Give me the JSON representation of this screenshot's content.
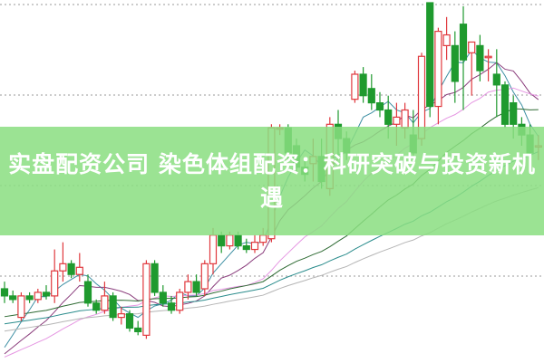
{
  "title": "实盘配资公司 染色体组配资：科研突破与投资新机遇",
  "chart_data": {
    "type": "candlestick",
    "title": "",
    "xlabel": "",
    "ylabel": "",
    "grid": "horizontal dotted",
    "ylim": [
      0,
      100
    ],
    "up_color": "#e0393e",
    "down_color": "#1f9a2e",
    "ma_colors": [
      "#3d8fa3",
      "#8a3d7c",
      "#e596e2",
      "#2f6b34",
      "#2a8c8c",
      "#b5b5b5"
    ],
    "candles": [
      [
        20,
        22,
        16,
        18
      ],
      [
        18,
        19.5,
        16,
        17
      ],
      [
        12,
        19,
        11,
        18
      ],
      [
        18,
        19,
        16,
        17
      ],
      [
        17,
        20,
        16,
        19
      ],
      [
        19,
        21,
        17,
        18
      ],
      [
        18,
        31,
        16,
        25
      ],
      [
        25,
        33,
        22,
        27
      ],
      [
        27,
        28,
        23,
        24
      ],
      [
        24,
        30,
        22,
        26
      ],
      [
        22,
        24,
        15,
        16
      ],
      [
        16,
        17,
        13,
        14
      ],
      [
        14,
        22,
        13,
        18
      ],
      [
        18,
        19,
        11,
        12
      ],
      [
        12,
        15,
        10,
        13
      ],
      [
        13,
        14,
        8,
        9
      ],
      [
        9,
        11,
        7,
        8
      ],
      [
        7,
        28,
        6,
        27
      ],
      [
        27,
        28,
        18,
        19
      ],
      [
        19,
        21,
        15,
        16
      ],
      [
        16,
        18,
        13,
        14
      ],
      [
        14,
        20,
        13,
        19
      ],
      [
        19,
        24,
        17,
        22
      ],
      [
        22,
        24,
        18,
        19
      ],
      [
        20,
        28,
        18,
        27
      ],
      [
        27,
        37,
        24,
        35
      ],
      [
        35,
        36,
        30,
        32
      ],
      [
        32,
        36,
        31,
        35
      ],
      [
        35,
        36,
        31,
        32
      ],
      [
        32,
        34,
        30,
        31
      ],
      [
        31,
        35,
        30,
        33
      ],
      [
        33,
        37,
        32,
        35
      ],
      [
        34,
        66,
        33,
        65
      ],
      [
        65,
        66,
        63,
        65
      ],
      [
        65,
        66,
        56,
        58
      ],
      [
        60,
        62,
        52,
        54
      ],
      [
        54,
        56,
        50,
        52
      ],
      [
        55,
        62,
        50,
        57
      ],
      [
        57,
        62,
        48,
        50
      ],
      [
        48,
        68,
        46,
        66
      ],
      [
        66,
        70,
        57,
        62
      ],
      [
        62,
        64,
        56,
        58
      ],
      [
        73,
        81,
        72,
        80
      ],
      [
        80,
        82,
        72,
        74
      ],
      [
        76,
        80,
        70,
        72
      ],
      [
        72,
        75,
        68,
        70
      ],
      [
        70,
        74,
        62,
        66
      ],
      [
        66,
        72,
        60,
        68
      ],
      [
        65,
        72,
        62,
        70
      ],
      [
        63,
        70,
        55,
        58
      ],
      [
        62,
        86,
        60,
        85
      ],
      [
        100,
        100,
        68,
        71
      ],
      [
        71,
        93,
        66,
        92
      ],
      [
        88,
        96,
        84,
        91
      ],
      [
        88,
        92,
        72,
        78
      ],
      [
        94,
        99,
        70,
        84
      ],
      [
        86,
        89,
        74,
        89
      ],
      [
        88,
        91,
        78,
        81
      ],
      [
        85,
        87,
        78,
        85
      ],
      [
        80,
        87,
        68,
        77
      ],
      [
        77,
        78,
        65,
        66
      ],
      [
        72,
        74,
        62,
        66
      ],
      [
        66,
        68,
        60,
        63
      ],
      [
        63,
        66,
        52,
        58
      ],
      [
        60,
        63,
        56,
        60
      ]
    ]
  }
}
